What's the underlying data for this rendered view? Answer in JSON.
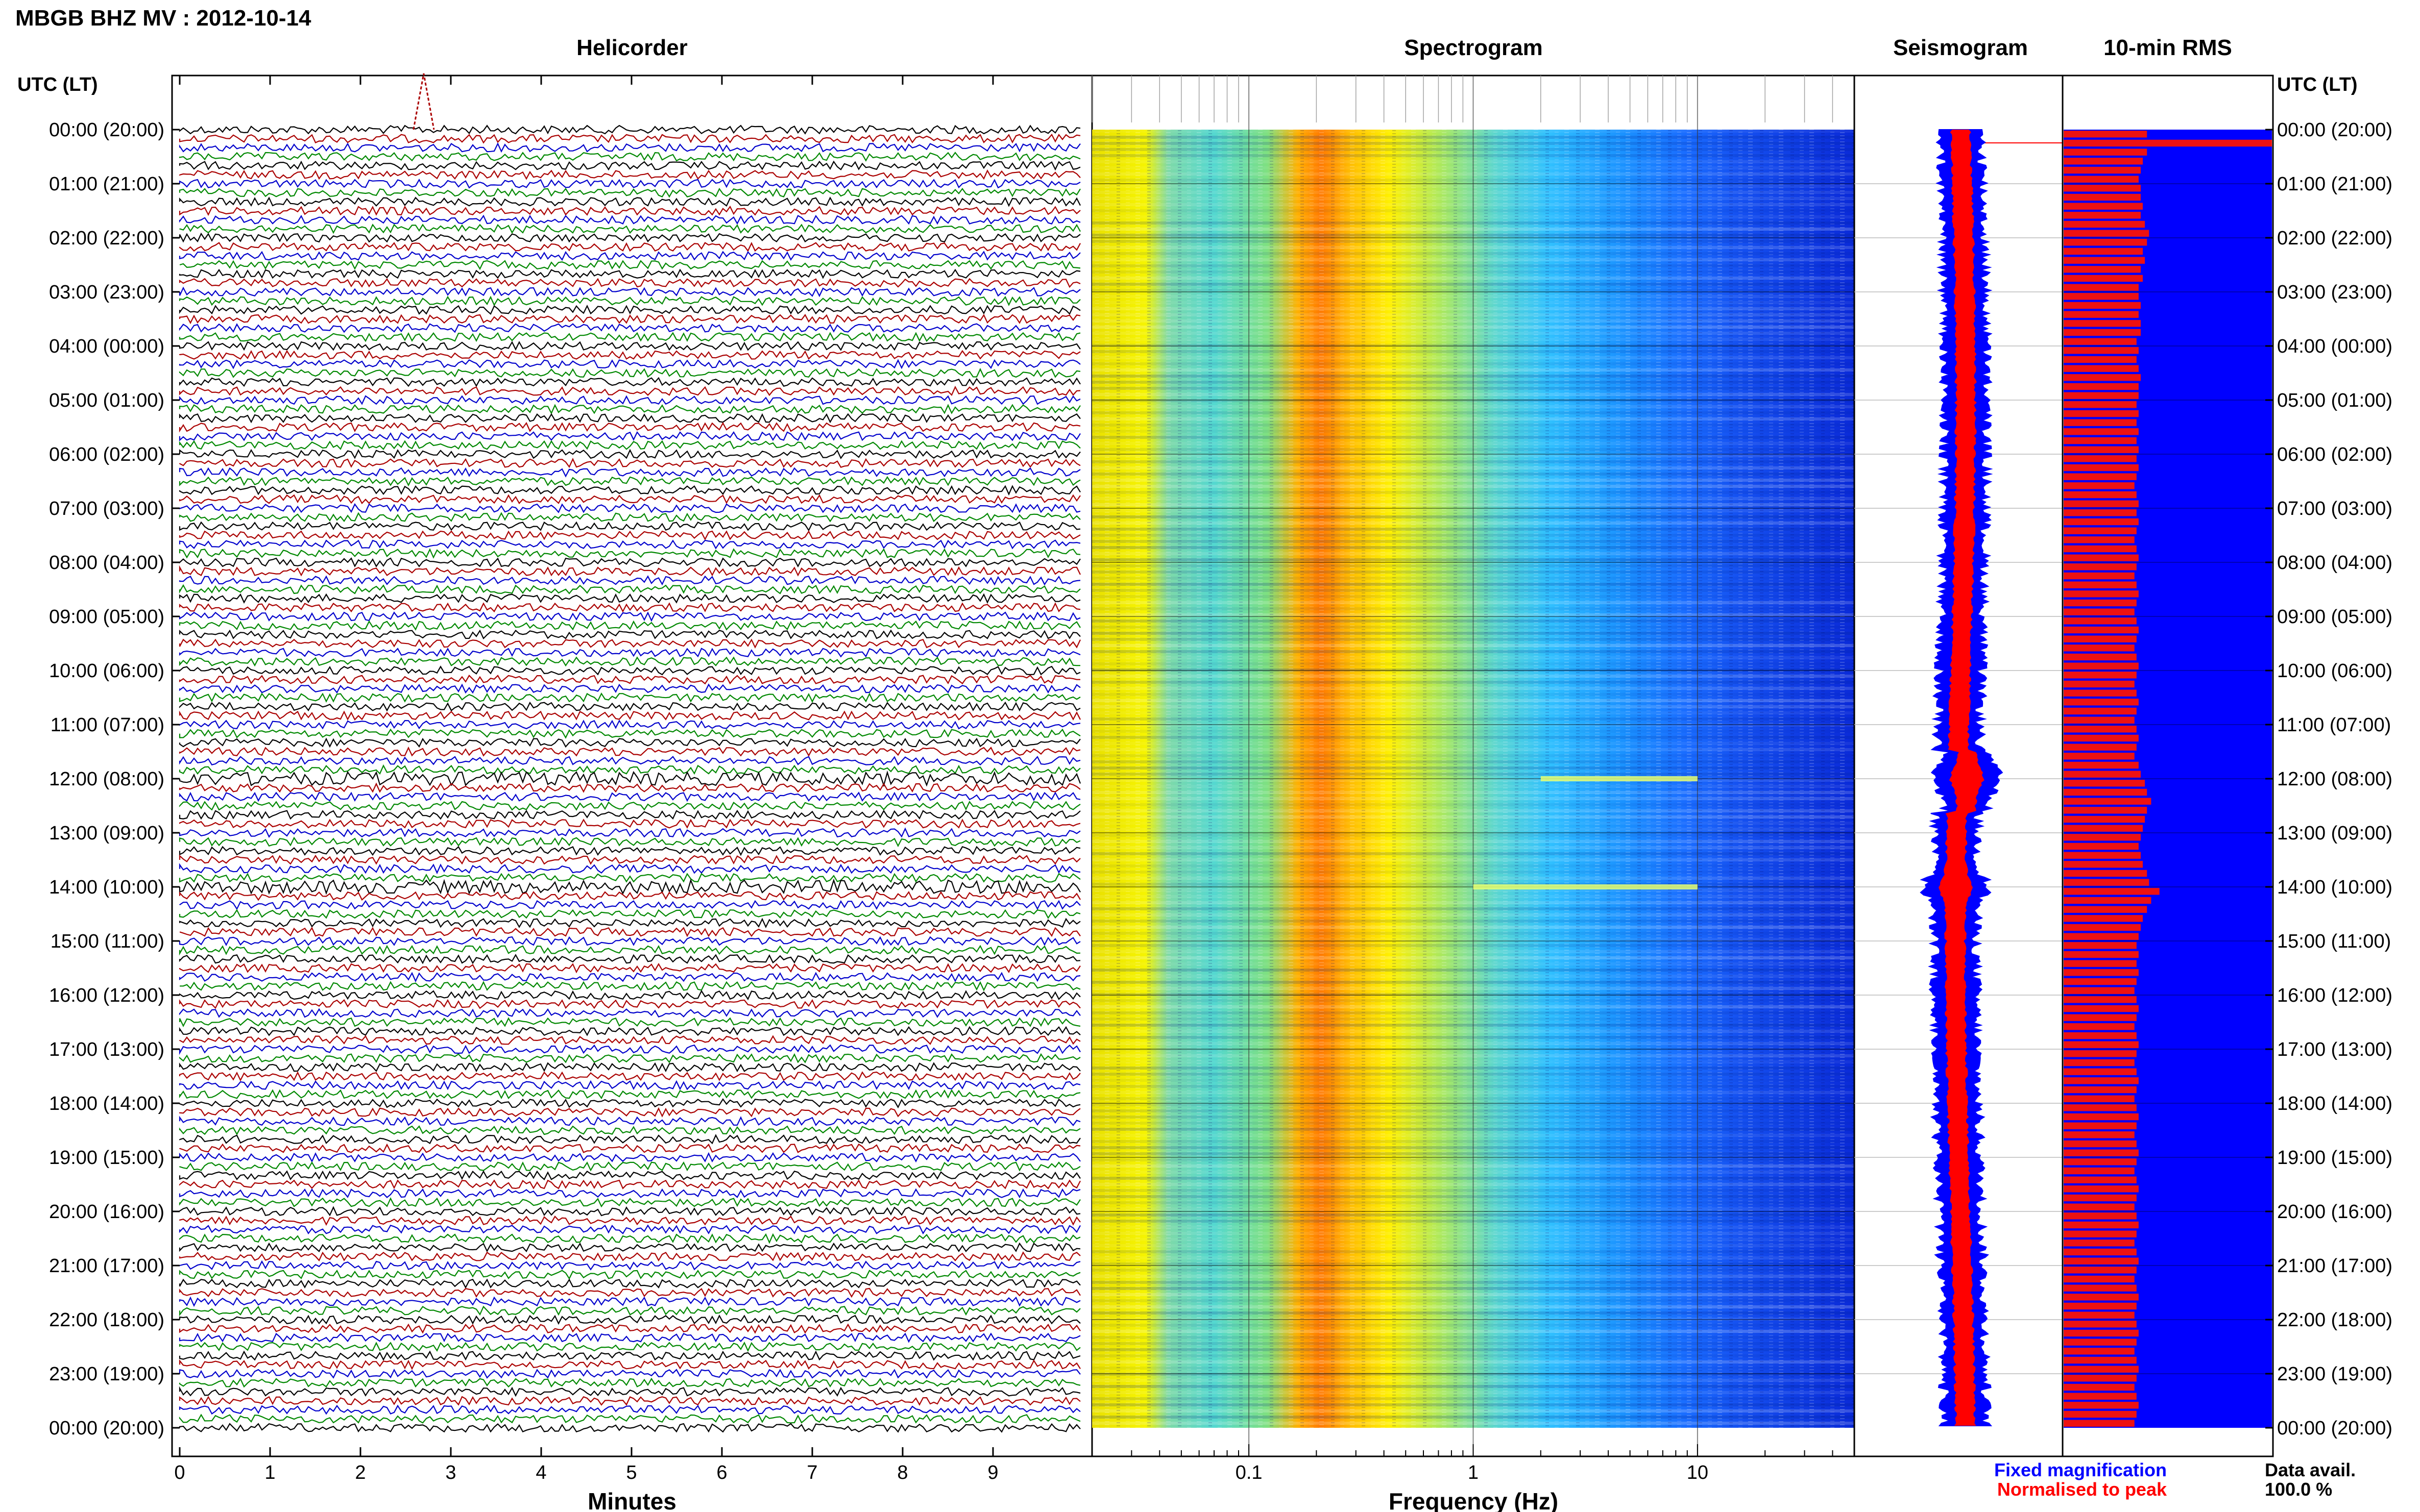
{
  "header": {
    "title": "MBGB BHZ MV : 2012-10-14"
  },
  "panels": {
    "helicorder_title": "Helicorder",
    "spectrogram_title": "Spectrogram",
    "seismogram_title": "Seismogram",
    "rms_title": "10-min RMS"
  },
  "time_axis": {
    "left_header": "UTC (LT)",
    "right_header": "UTC (LT)",
    "labels": [
      "00:00 (20:00)",
      "01:00 (21:00)",
      "02:00 (22:00)",
      "03:00 (23:00)",
      "04:00 (00:00)",
      "05:00 (01:00)",
      "06:00 (02:00)",
      "07:00 (03:00)",
      "08:00 (04:00)",
      "09:00 (05:00)",
      "10:00 (06:00)",
      "11:00 (07:00)",
      "12:00 (08:00)",
      "13:00 (09:00)",
      "14:00 (10:00)",
      "15:00 (11:00)",
      "16:00 (12:00)",
      "17:00 (13:00)",
      "18:00 (14:00)",
      "19:00 (15:00)",
      "20:00 (16:00)",
      "21:00 (17:00)",
      "22:00 (18:00)",
      "23:00 (19:00)",
      "00:00 (20:00)"
    ]
  },
  "helicorder_axis": {
    "label": "Minutes",
    "ticks": [
      "0",
      "1",
      "2",
      "3",
      "4",
      "5",
      "6",
      "7",
      "8",
      "9"
    ]
  },
  "spectrogram_axis": {
    "label": "Frequency (Hz)",
    "ticks": [
      "0.1",
      "1",
      "10"
    ]
  },
  "legend": {
    "fixed": "Fixed magnification",
    "normalised": "Normalised to peak",
    "fixed_color": "#0000ff",
    "normalised_color": "#ff0000"
  },
  "data_avail": {
    "label": "Data avail.",
    "value": "100.0 %"
  },
  "colors": {
    "trace_cycle": [
      "#000000",
      "#aa0000",
      "#0000cc",
      "#008800"
    ],
    "rms_background": "#0000ff",
    "rms_bar": "#ee1111",
    "seismo_fixed": "#0000ff",
    "seismo_norm": "#ff0000"
  },
  "chart_data": [
    {
      "type": "line",
      "title": "Helicorder",
      "xlabel": "Minutes",
      "xlim": [
        0,
        10
      ],
      "ylim_hours_utc": [
        0,
        24
      ],
      "rows": 144,
      "row_minutes": 10,
      "high_amplitude_hours_utc": [
        12.0,
        14.0
      ]
    },
    {
      "type": "heatmap",
      "title": "Spectrogram",
      "xlabel": "Frequency (Hz)",
      "x_scale": "log",
      "xlim": [
        0.02,
        50
      ],
      "ylim_hours_utc": [
        0,
        24
      ],
      "peak_frequency_hz": 0.25,
      "band_hz": [
        0.2,
        0.45
      ],
      "narrow_lines": [
        {
          "hour_utc": 12.0,
          "freq_range_hz": [
            2,
            10
          ]
        },
        {
          "hour_utc": 14.0,
          "freq_range_hz": [
            1,
            10
          ]
        }
      ]
    },
    {
      "type": "line",
      "title": "Seismogram",
      "series": [
        {
          "name": "Fixed magnification",
          "color": "#0000ff"
        },
        {
          "name": "Normalised to peak",
          "color": "#ff0000"
        }
      ],
      "bulges_hour_utc": [
        12.0,
        14.0
      ]
    },
    {
      "type": "bar",
      "title": "10-min RMS",
      "orientation": "horizontal",
      "interval_minutes": 10,
      "ylim_hours_utc": [
        0,
        24
      ],
      "values": [
        0.4,
        1.0,
        0.4,
        0.38,
        0.37,
        0.36,
        0.37,
        0.37,
        0.38,
        0.37,
        0.39,
        0.41,
        0.4,
        0.38,
        0.39,
        0.37,
        0.38,
        0.36,
        0.36,
        0.37,
        0.36,
        0.37,
        0.37,
        0.35,
        0.36,
        0.35,
        0.36,
        0.37,
        0.36,
        0.36,
        0.35,
        0.36,
        0.35,
        0.36,
        0.35,
        0.36,
        0.35,
        0.36,
        0.35,
        0.34,
        0.35,
        0.36,
        0.35,
        0.36,
        0.35,
        0.34,
        0.35,
        0.36,
        0.35,
        0.34,
        0.35,
        0.36,
        0.35,
        0.34,
        0.35,
        0.36,
        0.35,
        0.34,
        0.35,
        0.36,
        0.35,
        0.34,
        0.35,
        0.36,
        0.35,
        0.34,
        0.35,
        0.36,
        0.35,
        0.34,
        0.36,
        0.37,
        0.39,
        0.4,
        0.42,
        0.4,
        0.39,
        0.38,
        0.37,
        0.36,
        0.37,
        0.38,
        0.4,
        0.41,
        0.46,
        0.42,
        0.4,
        0.38,
        0.37,
        0.36,
        0.35,
        0.36,
        0.35,
        0.36,
        0.35,
        0.34,
        0.35,
        0.36,
        0.35,
        0.34,
        0.35,
        0.36,
        0.35,
        0.34,
        0.35,
        0.36,
        0.35,
        0.34,
        0.35,
        0.36,
        0.35,
        0.34,
        0.35,
        0.36,
        0.35,
        0.34,
        0.35,
        0.36,
        0.35,
        0.34,
        0.35,
        0.36,
        0.35,
        0.34,
        0.35,
        0.36,
        0.35,
        0.34,
        0.35,
        0.36,
        0.35,
        0.34,
        0.35,
        0.36,
        0.35,
        0.34,
        0.35,
        0.36,
        0.35,
        0.34,
        0.35,
        0.36,
        0.35,
        0.34
      ]
    }
  ]
}
